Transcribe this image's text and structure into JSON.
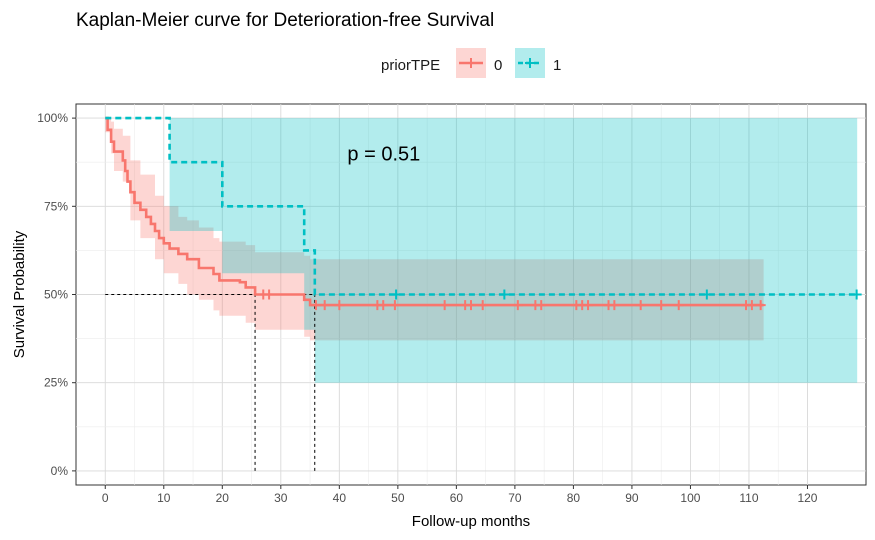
{
  "chart_data": {
    "type": "line",
    "subtype": "kaplan-meier",
    "title": "Kaplan-Meier curve for Deterioration-free Survival",
    "xlabel": "Follow-up months",
    "ylabel": "Survival Probability",
    "xlim": [
      -5,
      130
    ],
    "ylim": [
      -0.04,
      1.04
    ],
    "x_ticks": [
      0,
      10,
      20,
      30,
      40,
      50,
      60,
      70,
      80,
      90,
      100,
      110,
      120
    ],
    "y_ticks": [
      0,
      0.25,
      0.5,
      0.75,
      1.0
    ],
    "y_tick_labels": [
      "0%",
      "25%",
      "50%",
      "75%",
      "100%"
    ],
    "grid": true,
    "legend": {
      "title": "priorTPE",
      "position": "top"
    },
    "annotation": "p = 0.51",
    "annotation_at": {
      "x": 50,
      "y": 0.9
    },
    "median_lines": [
      {
        "horizontal_y": 0.5,
        "from_x": 0,
        "to_x": 35.8
      },
      {
        "vertical_x": 25.6,
        "from_y": 0,
        "to_y": 0.5
      },
      {
        "vertical_x": 35.8,
        "from_y": 0,
        "to_y": 0.5
      }
    ],
    "series": [
      {
        "name": "0",
        "color": "#F8766D",
        "line_style": "solid",
        "steps": [
          [
            0,
            1.0
          ],
          [
            0.4,
            0.967
          ],
          [
            1.0,
            0.933
          ],
          [
            1.5,
            0.905
          ],
          [
            3.0,
            0.88
          ],
          [
            3.4,
            0.85
          ],
          [
            3.8,
            0.82
          ],
          [
            4.3,
            0.79
          ],
          [
            5.0,
            0.76
          ],
          [
            6.0,
            0.74
          ],
          [
            7.0,
            0.72
          ],
          [
            7.8,
            0.7
          ],
          [
            8.5,
            0.68
          ],
          [
            9.2,
            0.66
          ],
          [
            10.0,
            0.645
          ],
          [
            11.0,
            0.63
          ],
          [
            12.5,
            0.615
          ],
          [
            14.0,
            0.6
          ],
          [
            16.0,
            0.575
          ],
          [
            18.5,
            0.558
          ],
          [
            19.5,
            0.54
          ],
          [
            23.0,
            0.535
          ],
          [
            24.0,
            0.52
          ],
          [
            25.6,
            0.5
          ],
          [
            26.5,
            0.5
          ],
          [
            34.0,
            0.485
          ],
          [
            35.0,
            0.47
          ],
          [
            35.8,
            0.47
          ],
          [
            112.5,
            0.47
          ]
        ],
        "ci_lower": [
          [
            0,
            0.96
          ],
          [
            1.0,
            0.9
          ],
          [
            1.5,
            0.85
          ],
          [
            3.0,
            0.82
          ],
          [
            4.3,
            0.71
          ],
          [
            6.0,
            0.66
          ],
          [
            8.5,
            0.6
          ],
          [
            10.0,
            0.56
          ],
          [
            12.5,
            0.53
          ],
          [
            14.0,
            0.5
          ],
          [
            16.0,
            0.485
          ],
          [
            18.5,
            0.455
          ],
          [
            19.5,
            0.44
          ],
          [
            24.0,
            0.42
          ],
          [
            25.6,
            0.4
          ],
          [
            34.0,
            0.38
          ],
          [
            35.0,
            0.37
          ],
          [
            35.8,
            0.37
          ],
          [
            112.5,
            0.37
          ]
        ],
        "ci_upper": [
          [
            0,
            1.0
          ],
          [
            1.0,
            0.99
          ],
          [
            1.5,
            0.97
          ],
          [
            3.0,
            0.95
          ],
          [
            4.3,
            0.88
          ],
          [
            6.0,
            0.84
          ],
          [
            8.5,
            0.78
          ],
          [
            10.0,
            0.75
          ],
          [
            12.5,
            0.72
          ],
          [
            14.0,
            0.71
          ],
          [
            16.0,
            0.69
          ],
          [
            18.5,
            0.66
          ],
          [
            19.5,
            0.65
          ],
          [
            24.0,
            0.64
          ],
          [
            25.6,
            0.62
          ],
          [
            34.0,
            0.61
          ],
          [
            35.0,
            0.6
          ],
          [
            35.8,
            0.6
          ],
          [
            112.5,
            0.6
          ]
        ],
        "censor_x": [
          27,
          28,
          36,
          37.5,
          40,
          46.5,
          47.5,
          49.5,
          58,
          61.5,
          62.5,
          64.5,
          70.5,
          73.5,
          74.5,
          80.5,
          81.5,
          82.5,
          86,
          87,
          91.5,
          95,
          98,
          109.5,
          110.5,
          112
        ]
      },
      {
        "name": "1",
        "color": "#00BFC4",
        "line_style": "dashed",
        "steps": [
          [
            0,
            1.0
          ],
          [
            11.0,
            0.875
          ],
          [
            20.0,
            0.75
          ],
          [
            34.0,
            0.625
          ],
          [
            35.8,
            0.5
          ],
          [
            128.5,
            0.5
          ]
        ],
        "ci_lower": [
          [
            0,
            1.0
          ],
          [
            11.0,
            0.68
          ],
          [
            20.0,
            0.56
          ],
          [
            34.0,
            0.4
          ],
          [
            35.8,
            0.25
          ],
          [
            128.5,
            0.25
          ]
        ],
        "ci_upper": [
          [
            0,
            1.0
          ],
          [
            128.5,
            1.0
          ]
        ],
        "censor_x": [
          49.7,
          68.2,
          102.8,
          128.4
        ]
      }
    ]
  }
}
